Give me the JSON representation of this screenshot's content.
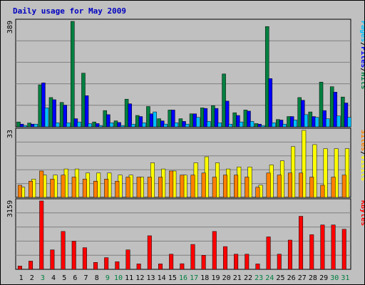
{
  "chart_data": {
    "type": "bar",
    "title": "Daily usage for May 2009",
    "days": [
      "1",
      "2",
      "3",
      "4",
      "5",
      "6",
      "7",
      "8",
      "9",
      "10",
      "11",
      "12",
      "13",
      "14",
      "15",
      "16",
      "17",
      "18",
      "19",
      "20",
      "21",
      "22",
      "23",
      "24",
      "25",
      "26",
      "27",
      "28",
      "29",
      "30",
      "31"
    ],
    "weekend_days": [
      3,
      9,
      10,
      16,
      17,
      23,
      24,
      30,
      31
    ],
    "panels": {
      "hits_files_pages": {
        "max_label": "389",
        "ylim": [
          0,
          389
        ],
        "legend": [
          "Pages",
          "/",
          "Files",
          "/",
          "Hits"
        ],
        "series": [
          {
            "name": "Hits",
            "color": "#008040",
            "values": [
              18,
              14,
              155,
              108,
              90,
              389,
              198,
              18,
              60,
              22,
              102,
              42,
              75,
              30,
              62,
              30,
              48,
              70,
              78,
              195,
              52,
              62,
              12,
              370,
              27,
              38,
              108,
              55,
              165,
              148,
              110
            ]
          },
          {
            "name": "Files",
            "color": "#0000ff",
            "values": [
              10,
              10,
              162,
              100,
              80,
              30,
              115,
              12,
              45,
              16,
              85,
              38,
              48,
              22,
              62,
              20,
              48,
              68,
              68,
              95,
              42,
              58,
              10,
              178,
              25,
              38,
              98,
              38,
              60,
              128,
              88
            ]
          },
          {
            "name": "Pages",
            "color": "#00c0ff",
            "values": [
              5,
              10,
              70,
              15,
              15,
              18,
              12,
              5,
              15,
              5,
              10,
              15,
              55,
              10,
              15,
              10,
              35,
              20,
              15,
              10,
              18,
              20,
              5,
              15,
              10,
              25,
              45,
              35,
              30,
              40,
              35
            ]
          }
        ]
      },
      "visits_sites": {
        "max_label": "33",
        "ylim": [
          0,
          33
        ],
        "legend": [
          "Sites",
          "/",
          "Visits"
        ],
        "series": [
          {
            "name": "Visits",
            "color": "#ffff00",
            "values": [
              5,
              9,
              11,
              11,
              14,
              14,
              12,
              12,
              12,
              11,
              11,
              10,
              17,
              14,
              13,
              11,
              17,
              20,
              17,
              14,
              15,
              15,
              6,
              16,
              18,
              25,
              33,
              26,
              24,
              24,
              24
            ]
          },
          {
            "name": "Sites",
            "color": "#ff8000",
            "values": [
              6,
              8,
              13,
              9,
              11,
              10,
              9,
              8,
              9,
              8,
              10,
              10,
              10,
              10,
              13,
              11,
              11,
              12,
              10,
              11,
              11,
              10,
              5,
              12,
              11,
              12,
              12,
              10,
              6,
              10,
              11
            ]
          }
        ]
      },
      "kbytes": {
        "max_label": "3159",
        "ylim": [
          0,
          3159
        ],
        "legend": [
          "KBytes"
        ],
        "series": [
          {
            "name": "KBytes",
            "color": "#ff0000",
            "values": [
              150,
              380,
              3159,
              900,
              1750,
              1300,
              1000,
              320,
              540,
              350,
              900,
              250,
              1550,
              250,
              700,
              260,
              1150,
              650,
              1750,
              1050,
              700,
              700,
              250,
              1500,
              700,
              1350,
              2450,
              1600,
              2050,
              2050,
              1850
            ]
          }
        ]
      }
    }
  }
}
